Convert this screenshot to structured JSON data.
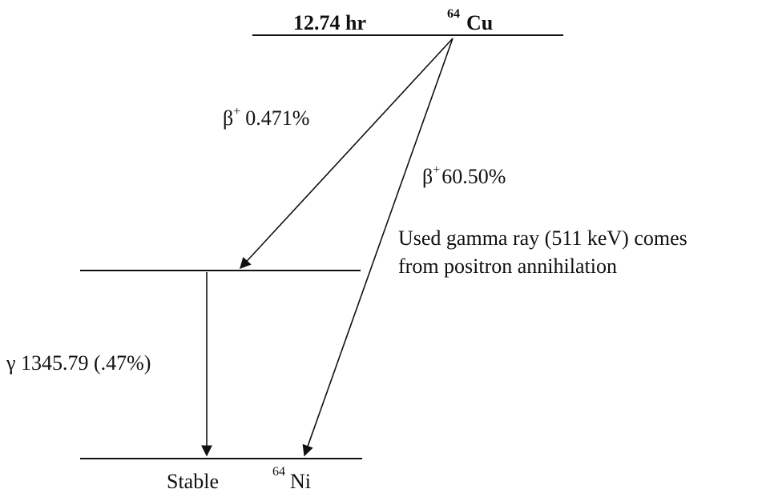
{
  "parent": {
    "half_life": "12.74 hr",
    "mass_number": "64",
    "element": "Cu"
  },
  "transitions": [
    {
      "symbol": "β",
      "sup": "+",
      "label": "0.471%"
    },
    {
      "symbol": "β",
      "sup": "+",
      "label": "60.50%"
    }
  ],
  "note": [
    "Used gamma ray (511 keV) comes",
    "from positron annihilation"
  ],
  "gamma": {
    "label": "γ 1345.79 (.47%)"
  },
  "daughter": {
    "status": "Stable",
    "mass_number": "64",
    "element": "Ni"
  }
}
